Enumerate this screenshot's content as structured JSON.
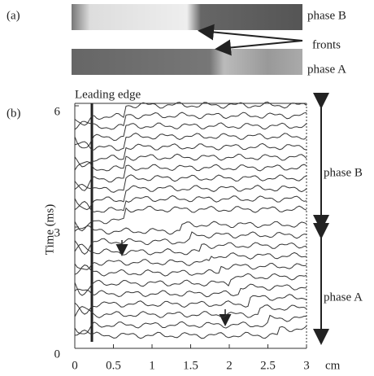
{
  "panel_a": {
    "label": "(a)",
    "phase_b": "phase B",
    "fronts": "fronts",
    "phase_a": "phase A"
  },
  "panel_b": {
    "label": "(b)",
    "leading_edge": "Leading edge",
    "y_label": "Time (ms)",
    "x_unit": "cm",
    "xlim": [
      0,
      3
    ],
    "ylim": [
      0,
      6
    ],
    "xticks": [
      0,
      0.5,
      1,
      1.5,
      2,
      2.5,
      3
    ],
    "yticks": [
      0,
      3,
      6
    ],
    "phase_b": "phase B",
    "phase_a": "phase A"
  }
}
